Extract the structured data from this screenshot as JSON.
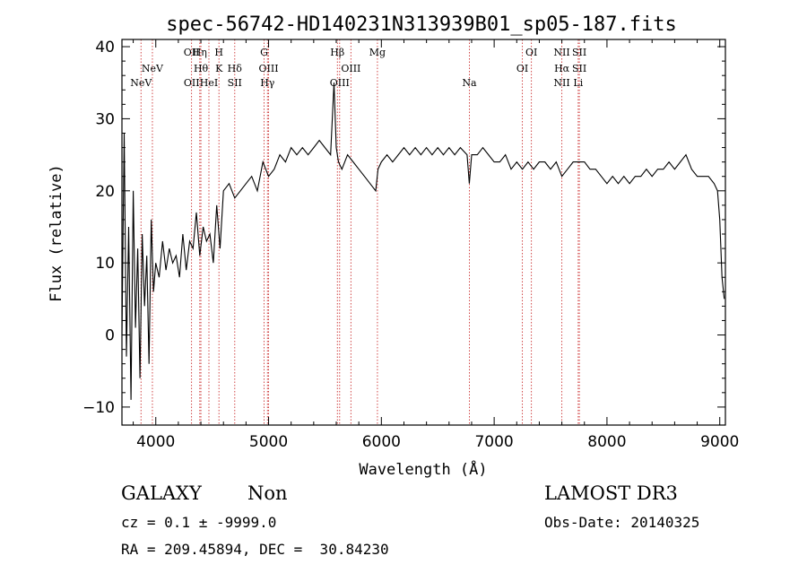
{
  "chart_data": {
    "type": "line",
    "title": "spec-56742-HD140231N313939B01_sp05-187.fits",
    "xlabel": "Wavelength (Å)",
    "ylabel": "Flux (relative)",
    "xlim": [
      3700,
      9050
    ],
    "ylim": [
      -12.5,
      41
    ],
    "x_ticks": [
      4000,
      5000,
      6000,
      7000,
      8000,
      9000
    ],
    "y_ticks": [
      -10,
      0,
      10,
      20,
      30,
      40
    ],
    "grid": false,
    "series": [
      {
        "x": [
          3700,
          3720,
          3740,
          3760,
          3780,
          3800,
          3820,
          3840,
          3860,
          3880,
          3900,
          3920,
          3940,
          3960,
          3980,
          4000,
          4030,
          4060,
          4090,
          4120,
          4150,
          4180,
          4210,
          4240,
          4270,
          4300,
          4330,
          4360,
          4390,
          4420,
          4450,
          4480,
          4510,
          4540,
          4570,
          4600,
          4650,
          4700,
          4750,
          4800,
          4850,
          4900,
          4950,
          5000,
          5050,
          5100,
          5150,
          5200,
          5250,
          5300,
          5350,
          5400,
          5450,
          5500,
          5550,
          5580,
          5600,
          5620,
          5650,
          5700,
          5750,
          5800,
          5850,
          5900,
          5950,
          5970,
          6000,
          6050,
          6100,
          6150,
          6200,
          6250,
          6300,
          6350,
          6400,
          6450,
          6500,
          6550,
          6600,
          6650,
          6700,
          6760,
          6780,
          6800,
          6850,
          6900,
          6950,
          7000,
          7050,
          7100,
          7150,
          7200,
          7250,
          7300,
          7350,
          7400,
          7450,
          7500,
          7550,
          7600,
          7650,
          7700,
          7750,
          7800,
          7850,
          7900,
          7950,
          8000,
          8050,
          8100,
          8150,
          8200,
          8250,
          8300,
          8350,
          8400,
          8450,
          8500,
          8550,
          8600,
          8650,
          8700,
          8750,
          8800,
          8850,
          8900,
          8950,
          8980,
          9000,
          9020,
          9040
        ],
        "y": [
          0,
          28,
          -3,
          15,
          -9,
          20,
          1,
          12,
          -6,
          14,
          4,
          11,
          -4,
          16,
          6,
          10,
          8,
          13,
          9,
          12,
          10,
          11,
          8,
          14,
          9,
          13,
          12,
          17,
          11,
          15,
          13,
          14,
          10,
          18,
          12,
          20,
          21,
          19,
          20,
          21,
          22,
          20,
          24,
          22,
          23,
          25,
          24,
          26,
          25,
          26,
          25,
          26,
          27,
          26,
          25,
          35,
          26,
          24,
          23,
          25,
          24,
          23,
          22,
          21,
          20,
          23,
          24,
          25,
          24,
          25,
          26,
          25,
          26,
          25,
          26,
          25,
          26,
          25,
          26,
          25,
          26,
          25,
          21,
          25,
          25,
          26,
          25,
          24,
          24,
          25,
          23,
          24,
          23,
          24,
          23,
          24,
          24,
          23,
          24,
          22,
          23,
          24,
          24,
          24,
          23,
          23,
          22,
          21,
          22,
          21,
          22,
          21,
          22,
          22,
          23,
          22,
          23,
          23,
          24,
          23,
          24,
          25,
          23,
          22,
          22,
          22,
          21,
          20,
          16,
          8,
          5
        ]
      }
    ],
    "lines": [
      {
        "label": "NeV",
        "wave": 3869,
        "row": 2
      },
      {
        "label": "NeV",
        "wave": 3970,
        "row": 1
      },
      {
        "label": "OII",
        "wave": 4317,
        "row": 0
      },
      {
        "label": "OII",
        "wave": 4318,
        "row": 2
      },
      {
        "label": "Hη",
        "wave": 4390,
        "row": 0
      },
      {
        "label": "Hθ",
        "wave": 4400,
        "row": 1
      },
      {
        "label": "HeI",
        "wave": 4471,
        "row": 2
      },
      {
        "label": "H",
        "wave": 4560,
        "row": 0
      },
      {
        "label": "K",
        "wave": 4560,
        "row": 1
      },
      {
        "label": "Hδ",
        "wave": 4700,
        "row": 1
      },
      {
        "label": "SII",
        "wave": 4700,
        "row": 2
      },
      {
        "label": "G",
        "wave": 4960,
        "row": 0
      },
      {
        "label": "OIII",
        "wave": 5000,
        "row": 1
      },
      {
        "label": "Hγ",
        "wave": 4990,
        "row": 2
      },
      {
        "label": "Hβ",
        "wave": 5610,
        "row": 0
      },
      {
        "label": "OIII",
        "wave": 5730,
        "row": 1
      },
      {
        "label": "OIII",
        "wave": 5630,
        "row": 2
      },
      {
        "label": "Mg",
        "wave": 5965,
        "row": 0
      },
      {
        "label": "Na",
        "wave": 6780,
        "row": 2
      },
      {
        "label": "OI",
        "wave": 7330,
        "row": 0
      },
      {
        "label": "OI",
        "wave": 7250,
        "row": 1
      },
      {
        "label": "NII",
        "wave": 7600,
        "row": 0
      },
      {
        "label": "Hα",
        "wave": 7600,
        "row": 1
      },
      {
        "label": "NII",
        "wave": 7600,
        "row": 2
      },
      {
        "label": "SII",
        "wave": 7755,
        "row": 0
      },
      {
        "label": "SII",
        "wave": 7755,
        "row": 1
      },
      {
        "label": "Li",
        "wave": 7745,
        "row": 2
      }
    ]
  },
  "info": {
    "class_label": "GALAXY",
    "subclass_label": "Non",
    "survey": "LAMOST DR3",
    "cz": "cz = 0.1 ± -9999.0",
    "obs_date": "Obs-Date: 20140325",
    "radec": "RA = 209.45894, DEC =  30.84230"
  }
}
